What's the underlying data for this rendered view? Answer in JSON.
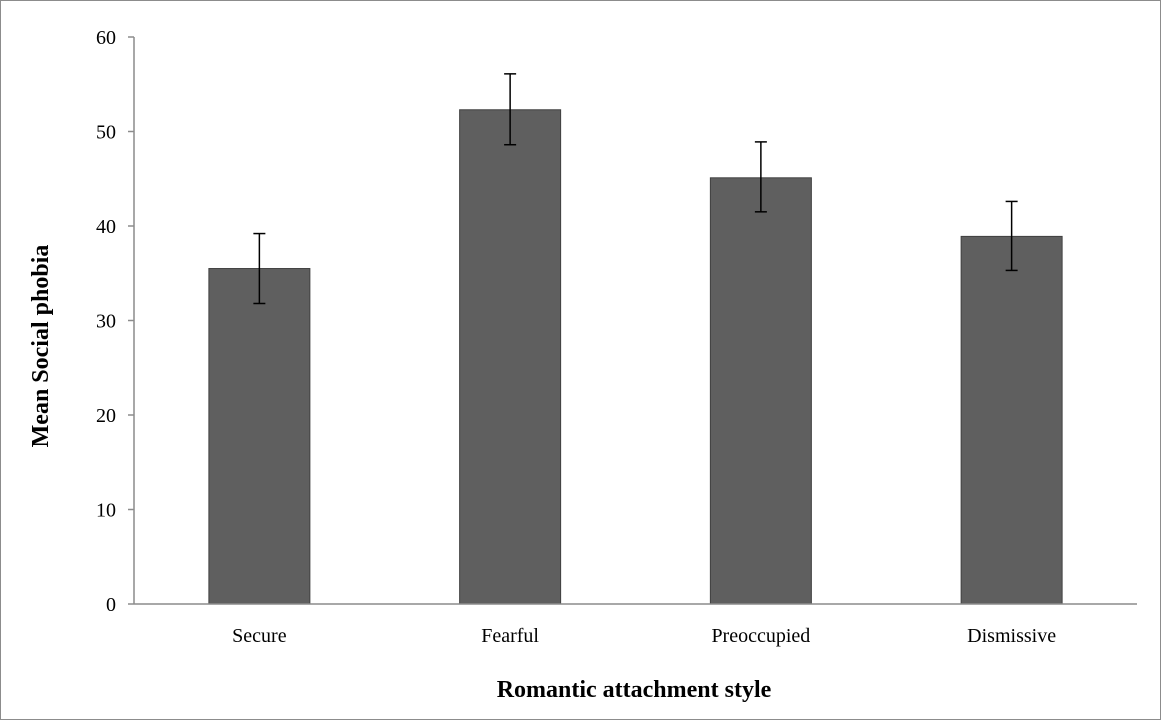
{
  "chart_data": {
    "type": "bar",
    "title": "",
    "xlabel": "Romantic attachment style",
    "ylabel": "Mean Social phobia",
    "categories": [
      "Secure",
      "Fearful",
      "Preoccupied",
      "Dismissive"
    ],
    "values": [
      35.5,
      52.3,
      45.1,
      38.9
    ],
    "error_bars": [
      {
        "low": 31.8,
        "high": 39.2
      },
      {
        "low": 48.6,
        "high": 56.1
      },
      {
        "low": 41.5,
        "high": 48.9
      },
      {
        "low": 35.3,
        "high": 42.6
      }
    ],
    "ylim": [
      0,
      60
    ],
    "yticks": [
      "0",
      "10",
      "20",
      "30",
      "40",
      "50",
      "60"
    ],
    "grid": false,
    "legend": "none",
    "bar_color": "#5f5f5f",
    "bar_edge_color": "#404040"
  }
}
